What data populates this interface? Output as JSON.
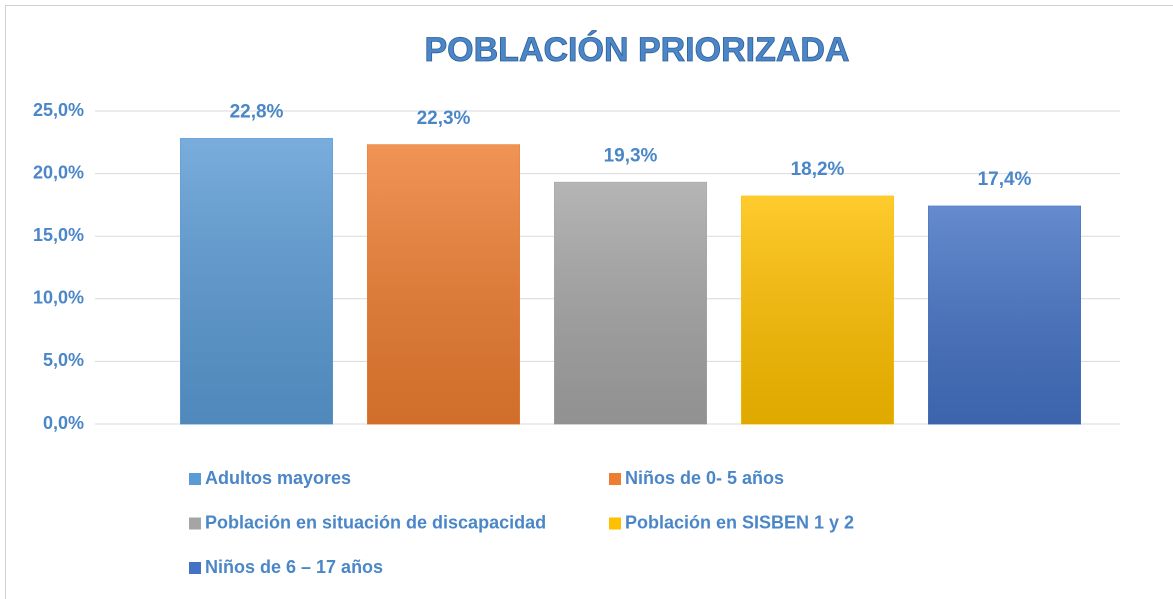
{
  "chart_data": {
    "type": "bar",
    "title": "POBLACIÓN PRIORIZADA",
    "series": [
      {
        "name": "Adultos mayores",
        "color": "#5b9bd5",
        "values": [
          22.8
        ],
        "value_labels": [
          "22,8%"
        ]
      },
      {
        "name": "Niños de 0- 5 años",
        "color": "#ed7d31",
        "values": [
          22.3
        ],
        "value_labels": [
          "22,3%"
        ]
      },
      {
        "name": "Población en situación de discapacidad",
        "color": "#a5a5a5",
        "values": [
          19.3
        ],
        "value_labels": [
          "19,3%"
        ]
      },
      {
        "name": "Población en SISBEN 1 y 2",
        "color": "#ffc000",
        "values": [
          18.2
        ],
        "value_labels": [
          "18,2%"
        ]
      },
      {
        "name": "Niños de 6 – 17 años",
        "color": "#4472c4",
        "values": [
          17.4
        ],
        "value_labels": [
          "17,4%"
        ]
      }
    ],
    "ylim": [
      0,
      25
    ],
    "yticks": [
      {
        "value": 0,
        "label": "0,0%"
      },
      {
        "value": 5,
        "label": "5,0%"
      },
      {
        "value": 10,
        "label": "10,0%"
      },
      {
        "value": 15,
        "label": "15,0%"
      },
      {
        "value": 20,
        "label": "20,0%"
      },
      {
        "value": 25,
        "label": "25,0%"
      }
    ],
    "grid": true,
    "legend": "bottom"
  }
}
